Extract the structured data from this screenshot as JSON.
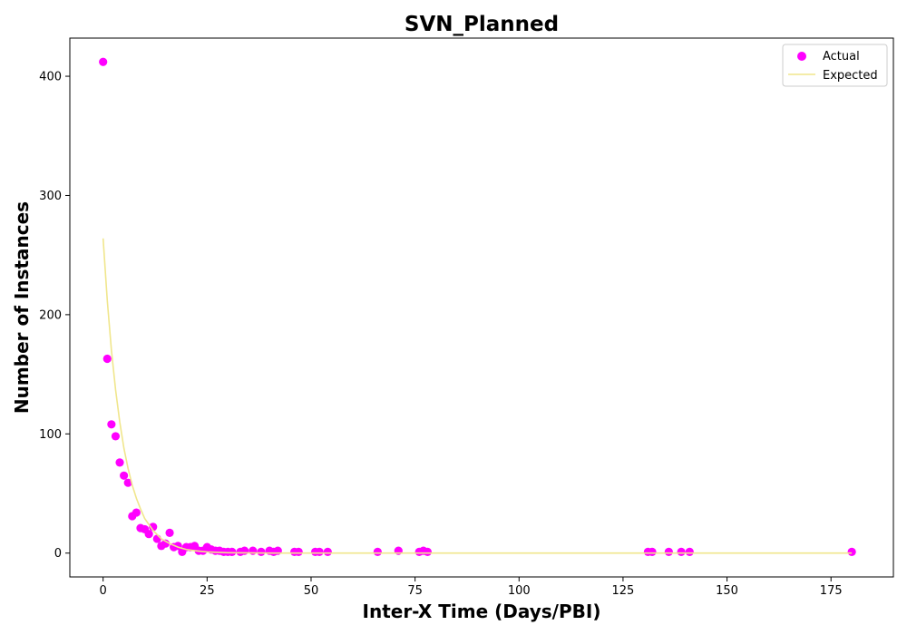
{
  "chart_data": {
    "type": "scatter",
    "title": "SVN_Planned",
    "xlabel": "Inter-X Time (Days/PBI)",
    "ylabel": "Number of Instances",
    "xlim": [
      -8,
      190
    ],
    "ylim": [
      -20,
      432
    ],
    "x_ticks": [
      0,
      25,
      50,
      75,
      100,
      125,
      150,
      175
    ],
    "y_ticks": [
      0,
      100,
      200,
      300,
      400
    ],
    "grid": false,
    "legend_position": "top-right",
    "series": [
      {
        "name": "Actual",
        "kind": "scatter",
        "color": "#ff00ff",
        "points": [
          [
            0,
            412
          ],
          [
            1,
            163
          ],
          [
            2,
            108
          ],
          [
            3,
            98
          ],
          [
            4,
            76
          ],
          [
            5,
            65
          ],
          [
            6,
            59
          ],
          [
            7,
            31
          ],
          [
            8,
            34
          ],
          [
            9,
            21
          ],
          [
            10,
            20
          ],
          [
            11,
            16
          ],
          [
            12,
            22
          ],
          [
            13,
            12
          ],
          [
            14,
            6
          ],
          [
            15,
            8
          ],
          [
            16,
            17
          ],
          [
            17,
            5
          ],
          [
            18,
            6
          ],
          [
            19,
            1
          ],
          [
            20,
            5
          ],
          [
            21,
            5
          ],
          [
            22,
            6
          ],
          [
            23,
            2
          ],
          [
            24,
            2
          ],
          [
            25,
            5
          ],
          [
            26,
            3
          ],
          [
            27,
            2
          ],
          [
            28,
            2
          ],
          [
            29,
            1
          ],
          [
            30,
            1
          ],
          [
            31,
            1
          ],
          [
            33,
            1
          ],
          [
            34,
            2
          ],
          [
            36,
            2
          ],
          [
            38,
            1
          ],
          [
            40,
            2
          ],
          [
            41,
            1
          ],
          [
            42,
            2
          ],
          [
            46,
            1
          ],
          [
            47,
            1
          ],
          [
            51,
            1
          ],
          [
            52,
            1
          ],
          [
            54,
            1
          ],
          [
            66,
            1
          ],
          [
            71,
            2
          ],
          [
            76,
            1
          ],
          [
            77,
            2
          ],
          [
            78,
            1
          ],
          [
            131,
            1
          ],
          [
            132,
            1
          ],
          [
            136,
            1
          ],
          [
            139,
            1
          ],
          [
            141,
            1
          ],
          [
            180,
            1
          ]
        ]
      },
      {
        "name": "Expected",
        "kind": "line",
        "color": "#f0e68c",
        "points": [
          [
            0,
            264
          ],
          [
            1,
            212
          ],
          [
            2,
            170
          ],
          [
            3,
            137
          ],
          [
            4,
            110
          ],
          [
            5,
            88
          ],
          [
            6,
            71
          ],
          [
            7,
            57
          ],
          [
            8,
            46
          ],
          [
            9,
            37
          ],
          [
            10,
            29
          ],
          [
            12,
            19
          ],
          [
            14,
            12
          ],
          [
            16,
            8
          ],
          [
            18,
            5
          ],
          [
            20,
            3
          ],
          [
            22,
            2
          ],
          [
            25,
            1
          ],
          [
            30,
            0.3
          ],
          [
            40,
            0
          ],
          [
            60,
            0
          ],
          [
            100,
            0
          ],
          [
            140,
            0
          ],
          [
            180,
            0
          ]
        ]
      }
    ]
  }
}
